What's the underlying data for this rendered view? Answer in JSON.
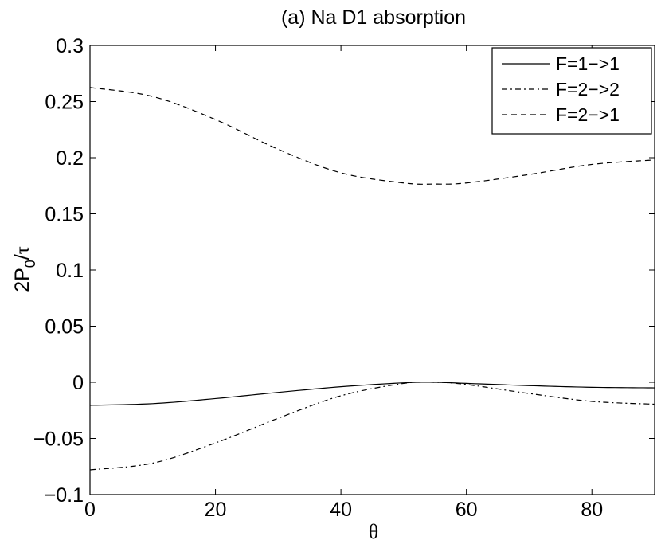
{
  "chart_data": {
    "type": "line",
    "title": "(a) Na D1 absorption",
    "xlabel": "θ",
    "ylabel": "2P0/τ",
    "xlim": [
      0,
      90
    ],
    "ylim": [
      -0.1,
      0.3
    ],
    "xticks": [
      0,
      20,
      40,
      60,
      80
    ],
    "xtick_labels": [
      "0",
      "20",
      "40",
      "60",
      "80"
    ],
    "yticks": [
      -0.1,
      -0.05,
      0,
      0.05,
      0.1,
      0.15,
      0.2,
      0.25,
      0.3
    ],
    "ytick_labels": [
      "−0.1",
      "−0.05",
      "0",
      "0.05",
      "0.1",
      "0.15",
      "0.2",
      "0.25",
      "0.3"
    ],
    "grid": false,
    "legend_position": "top-right",
    "series": [
      {
        "name": "F=1−>1",
        "style": "solid",
        "color": "#000000",
        "x": [
          0,
          10,
          20,
          30,
          40,
          50,
          55,
          60,
          70,
          80,
          90
        ],
        "y": [
          -0.0205,
          -0.019,
          -0.0145,
          -0.009,
          -0.004,
          -0.0005,
          0.0,
          -0.001,
          -0.003,
          -0.0045,
          -0.005
        ]
      },
      {
        "name": "F=2−>2",
        "style": "dashdot",
        "color": "#000000",
        "x": [
          0,
          10,
          20,
          30,
          40,
          50,
          55,
          60,
          70,
          80,
          90
        ],
        "y": [
          -0.078,
          -0.072,
          -0.054,
          -0.032,
          -0.012,
          -0.001,
          0.0,
          -0.002,
          -0.01,
          -0.017,
          -0.0195
        ]
      },
      {
        "name": "F=2−>1",
        "style": "dashed",
        "color": "#000000",
        "x": [
          0,
          10,
          20,
          30,
          40,
          50,
          55,
          60,
          70,
          80,
          90
        ],
        "y": [
          0.2625,
          0.2545,
          0.234,
          0.2075,
          0.1865,
          0.1775,
          0.1765,
          0.1775,
          0.185,
          0.194,
          0.198
        ]
      }
    ]
  }
}
